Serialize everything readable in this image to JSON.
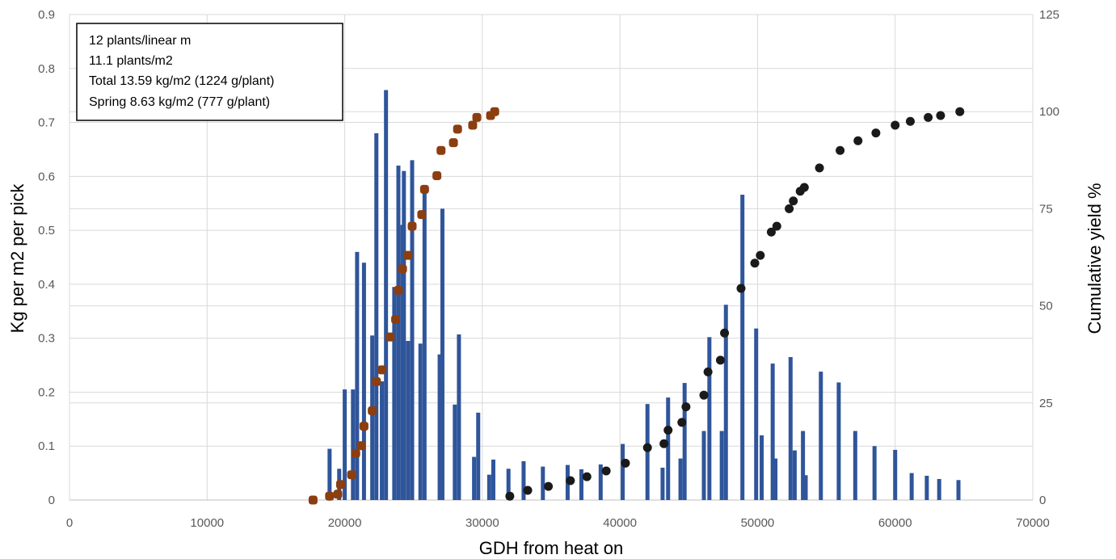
{
  "chart_data": {
    "type": "bar",
    "title": "",
    "xlabel": "GDH from heat on",
    "ylabel": "Kg per m2 per pick",
    "y2label": "Cumulative yield %",
    "xlim": [
      0,
      70000
    ],
    "ylim": [
      0,
      0.9
    ],
    "y2lim": [
      0,
      125
    ],
    "grid": true,
    "x_ticks": [
      "0",
      "10000",
      "20000",
      "30000",
      "40000",
      "50000",
      "60000",
      "70000"
    ],
    "y_ticks": [
      "0",
      "0.1",
      "0.2",
      "0.3",
      "0.4",
      "0.5",
      "0.6",
      "0.7",
      "0.8",
      "0.9"
    ],
    "y2_ticks": [
      "0",
      "25",
      "50",
      "75",
      "100",
      "125"
    ],
    "annotation": [
      "12 plants/linear m",
      "11.1 plants/m2",
      "Total 13.59 kg/m2 (1224 g/plant)",
      "Spring 8.63 kg/m2 (777 g/plant)"
    ],
    "colors": {
      "bars": "#2f559a",
      "spring_cumulative": "#8b3e10",
      "late_cumulative": "#1a1a1a",
      "grid": "#d9d9d9"
    },
    "series": [
      {
        "type": "bar",
        "axis": "left",
        "x": [
          18900,
          19600,
          20000,
          20600,
          20900,
          21400,
          22000,
          22300,
          22700,
          23000,
          23600,
          23900,
          24200,
          24300,
          24600,
          24900,
          25500,
          25800,
          26900,
          27100,
          28000,
          28300,
          29400,
          29700,
          30500,
          30800,
          31900,
          33000,
          34400,
          36200,
          37200,
          38600,
          40200,
          42000,
          43100,
          43500,
          44400,
          44700,
          46100,
          46500,
          47400,
          47700,
          48900,
          49900,
          50300,
          51100,
          51300,
          52400,
          52700,
          53300,
          53500,
          54600,
          55900,
          57100,
          58500,
          60000,
          61200,
          62300,
          63200,
          64600
        ],
        "values": [
          0.095,
          0.058,
          0.205,
          0.205,
          0.46,
          0.44,
          0.305,
          0.68,
          0.22,
          0.76,
          0.395,
          0.62,
          0.51,
          0.61,
          0.295,
          0.63,
          0.29,
          0.58,
          0.27,
          0.54,
          0.177,
          0.307,
          0.08,
          0.162,
          0.047,
          0.075,
          0.058,
          0.072,
          0.062,
          0.065,
          0.057,
          0.066,
          0.104,
          0.178,
          0.06,
          0.19,
          0.077,
          0.217,
          0.128,
          0.302,
          0.128,
          0.362,
          0.566,
          0.318,
          0.12,
          0.253,
          0.077,
          0.265,
          0.092,
          0.128,
          0.046,
          0.238,
          0.218,
          0.128,
          0.1,
          0.093,
          0.05,
          0.045,
          0.039,
          0.037
        ]
      },
      {
        "type": "scatter",
        "axis": "right",
        "x": [
          17700,
          18900,
          19500,
          19700,
          20500,
          20800,
          21200,
          21400,
          22000,
          22300,
          22700,
          23300,
          23700,
          23900,
          24200,
          24600,
          24900,
          25600,
          25800,
          26700,
          27000,
          27900,
          28200,
          29300,
          29600,
          30600,
          30900
        ],
        "values": [
          0,
          1,
          1.5,
          4,
          6.5,
          12,
          14,
          19,
          23,
          30.5,
          33.5,
          42,
          46.5,
          54,
          59.5,
          63,
          70.5,
          73.5,
          80,
          83.5,
          90,
          92,
          95.5,
          96.5,
          98.5,
          99,
          100
        ]
      },
      {
        "type": "scatter",
        "axis": "right",
        "x": [
          32000,
          33300,
          34800,
          36400,
          37600,
          39000,
          40400,
          42000,
          43200,
          43500,
          44500,
          44800,
          46100,
          46400,
          47300,
          47600,
          48800,
          49800,
          50200,
          51000,
          51400,
          52300,
          52600,
          53100,
          53400,
          54500,
          56000,
          57300,
          58600,
          60000,
          61100,
          62400,
          63300,
          64700
        ],
        "values": [
          1,
          2.5,
          3.5,
          5,
          6,
          7.5,
          9.5,
          13.5,
          14.5,
          18,
          20,
          24,
          27,
          33,
          36,
          43,
          54.5,
          61,
          63,
          69,
          70.5,
          75,
          77,
          79.5,
          80.5,
          85.5,
          90,
          92.5,
          94.5,
          96.5,
          97.5,
          98.5,
          99,
          100
        ]
      }
    ]
  }
}
